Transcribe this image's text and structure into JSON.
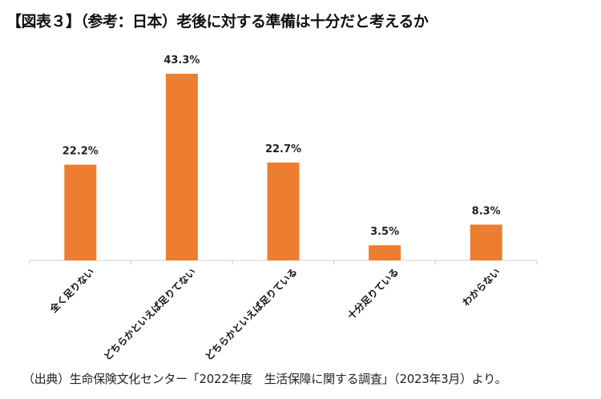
{
  "chart_data": {
    "type": "bar",
    "title": "【図表３】（参考：日本）老後に対する準備は十分だと考えるか",
    "categories": [
      "全く足りない",
      "どちらかといえば足りてない",
      "どちらかといえば足りている",
      "十分足りている",
      "わからない"
    ],
    "values": [
      22.2,
      43.3,
      22.7,
      3.5,
      8.3
    ],
    "data_labels": [
      "22.2%",
      "43.3%",
      "22.7%",
      "3.5%",
      "8.3%"
    ],
    "xlabel": "",
    "ylabel": "",
    "ylim": [
      0,
      50
    ],
    "grid": false,
    "bar_color": "#ED7D31",
    "source": "（出典）生命保険文化センター「2022年度　生活保障に関する調査」（2023年3月）より。"
  }
}
